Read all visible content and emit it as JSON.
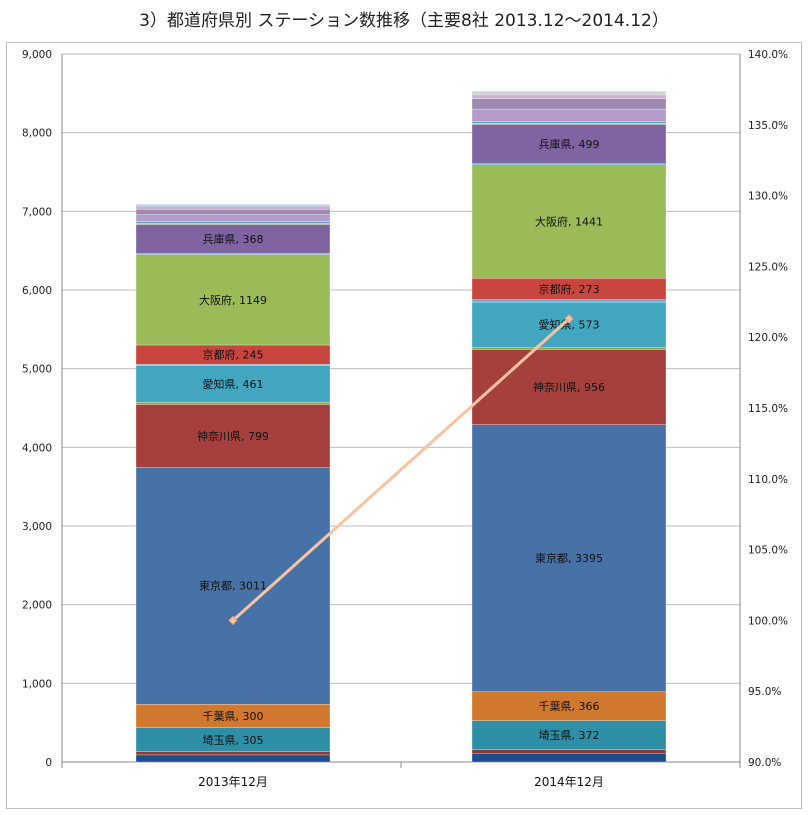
{
  "chart_data": {
    "type": "stacked-bar",
    "title": "3）都道府県別 ステーション数推移（主要8社 2013.12～2014.12）",
    "categories": [
      "2013年12月",
      "2014年12月"
    ],
    "ylim": [
      0,
      9000
    ],
    "y_ticks": [
      "0",
      "1,000",
      "2,000",
      "3,000",
      "4,000",
      "5,000",
      "6,000",
      "7,000",
      "8,000",
      "9,000"
    ],
    "y2lim": [
      90,
      140
    ],
    "y2_ticks": [
      "90.0%",
      "95.0%",
      "100.0%",
      "105.0%",
      "110.0%",
      "115.0%",
      "120.0%",
      "125.0%",
      "130.0%",
      "135.0%",
      "140.0%"
    ],
    "grid": true,
    "series": [
      {
        "name": "",
        "color": "#1f4e8c",
        "values": [
          90,
          110
        ],
        "label": ""
      },
      {
        "name": "",
        "color": "#8b3a3a",
        "values": [
          40,
          45
        ],
        "label": ""
      },
      {
        "name": "埼玉県",
        "color": "#2e8fa7",
        "values": [
          305,
          372
        ],
        "label": "埼玉県"
      },
      {
        "name": "千葉県",
        "color": "#d0782e",
        "values": [
          300,
          366
        ],
        "label": "千葉県"
      },
      {
        "name": "東京都",
        "color": "#4672a8",
        "values": [
          3011,
          3395
        ],
        "label": "東京都"
      },
      {
        "name": "神奈川県",
        "color": "#a6403d",
        "values": [
          799,
          956
        ],
        "label": "神奈川県"
      },
      {
        "name": "",
        "color": "#8aa64a",
        "values": [
          30,
          30
        ],
        "label": ""
      },
      {
        "name": "愛知県",
        "color": "#42a6c0",
        "values": [
          461,
          573
        ],
        "label": "愛知県"
      },
      {
        "name": "",
        "color": "#7aa5d1",
        "values": [
          20,
          30
        ],
        "label": ""
      },
      {
        "name": "京都府",
        "color": "#c8463e",
        "values": [
          245,
          273
        ],
        "label": "京都府"
      },
      {
        "name": "大阪府",
        "color": "#9bbb59",
        "values": [
          1149,
          1441
        ],
        "label": "大阪府"
      },
      {
        "name": "",
        "color": "#4cabb1",
        "values": [
          15,
          15
        ],
        "label": ""
      },
      {
        "name": "兵庫県",
        "color": "#8064a2",
        "values": [
          368,
          499
        ],
        "label": "兵庫県"
      },
      {
        "name": "",
        "color": "#a8c464",
        "values": [
          15,
          15
        ],
        "label": ""
      },
      {
        "name": "",
        "color": "#5da8c4",
        "values": [
          20,
          20
        ],
        "label": ""
      },
      {
        "name": "",
        "color": "#b39cc9",
        "values": [
          90,
          160
        ],
        "label": ""
      },
      {
        "name": "",
        "color": "#9e8ab0",
        "values": [
          70,
          130
        ],
        "label": ""
      },
      {
        "name": "",
        "color": "#c9b3d6",
        "values": [
          40,
          50
        ],
        "label": ""
      },
      {
        "name": "",
        "color": "#f0b8b8",
        "values": [
          0,
          25
        ],
        "label": ""
      },
      {
        "name": "",
        "color": "#a9cfe0",
        "values": [
          20,
          20
        ],
        "label": ""
      }
    ],
    "line": {
      "name": "",
      "color": "#f8c3a0",
      "values": [
        100.0,
        121.3
      ],
      "axis": "right"
    }
  }
}
